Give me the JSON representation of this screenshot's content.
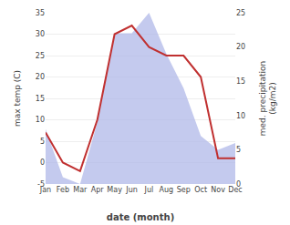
{
  "chart_data": {
    "type": "line",
    "categories": [
      "Jan",
      "Feb",
      "Mar",
      "Apr",
      "May",
      "Jun",
      "Jul",
      "Aug",
      "Sep",
      "Oct",
      "Nov",
      "Dec"
    ],
    "series": [
      {
        "type": "area",
        "axis": "y2",
        "color": "#b0b8e8",
        "values": [
          8,
          1,
          0,
          9,
          22,
          22,
          25,
          19,
          14,
          7,
          5,
          6
        ]
      },
      {
        "type": "line",
        "color": "#c03030",
        "values": [
          7,
          0,
          -2,
          10,
          30,
          32,
          27,
          25,
          25,
          20,
          1,
          1
        ]
      }
    ],
    "xlabel": "date (month)",
    "ylabel": "max temp (C)",
    "y2label": "med. precipitation\n(kg/m2)",
    "ylim": [
      -5,
      35
    ],
    "yticks": [
      -5,
      0,
      5,
      10,
      15,
      20,
      25,
      30,
      35
    ],
    "y2lim": [
      0,
      25
    ],
    "y2ticks": [
      0,
      5,
      10,
      15,
      20,
      25
    ],
    "grid": true
  }
}
